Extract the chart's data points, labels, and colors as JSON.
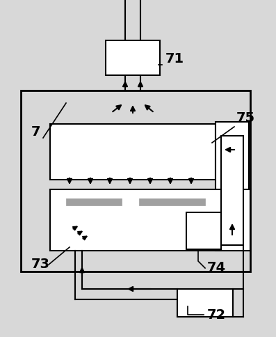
{
  "bg_color": "#d8d8d8",
  "line_color": "#000000",
  "box_fill": "#ffffff",
  "gray_fill": "#a0a0a0",
  "fig_w": 3.97,
  "fig_h": 4.84,
  "dpi": 100
}
